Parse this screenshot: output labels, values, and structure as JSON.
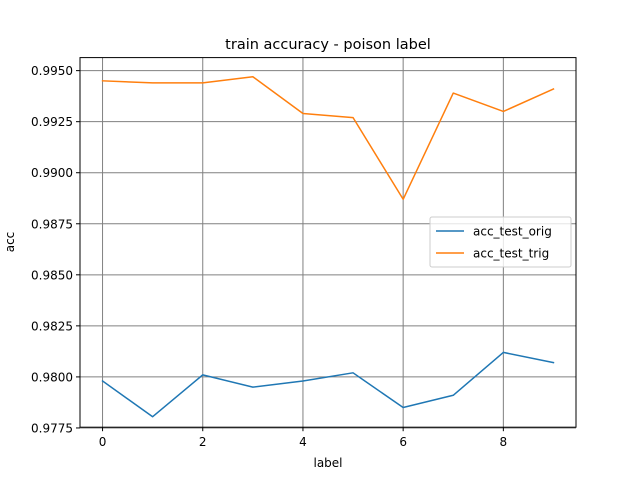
{
  "chart_data": {
    "type": "line",
    "title": "train accuracy - poison label",
    "xlabel": "label",
    "ylabel": "acc",
    "x": [
      0,
      1,
      2,
      3,
      4,
      5,
      6,
      7,
      8,
      9
    ],
    "xlim": [
      -0.45,
      9.45
    ],
    "ylim": [
      0.99775,
      0.99555
    ],
    "xticks": [
      0,
      2,
      4,
      6,
      8
    ],
    "xtick_labels": [
      "0",
      "2",
      "4",
      "6",
      "8"
    ],
    "yticks": [
      0.9775,
      0.98,
      0.9825,
      0.985,
      0.9875,
      0.99,
      0.9925,
      0.995
    ],
    "ytick_labels": [
      "0.9775",
      "0.9800",
      "0.9825",
      "0.9850",
      "0.9875",
      "0.9900",
      "0.9925",
      "0.9950"
    ],
    "grid": true,
    "legend": "center-right",
    "series": [
      {
        "name": "acc_test_orig",
        "color": "#1f77b4",
        "values": [
          0.9798,
          0.97805,
          0.9801,
          0.9795,
          0.9798,
          0.9802,
          0.9785,
          0.9791,
          0.9812,
          0.9807
        ]
      },
      {
        "name": "acc_test_trig",
        "color": "#ff7f0e",
        "values": [
          0.9945,
          0.9944,
          0.9944,
          0.9947,
          0.9929,
          0.9927,
          0.9887,
          0.9939,
          0.993,
          0.9941
        ]
      }
    ]
  }
}
